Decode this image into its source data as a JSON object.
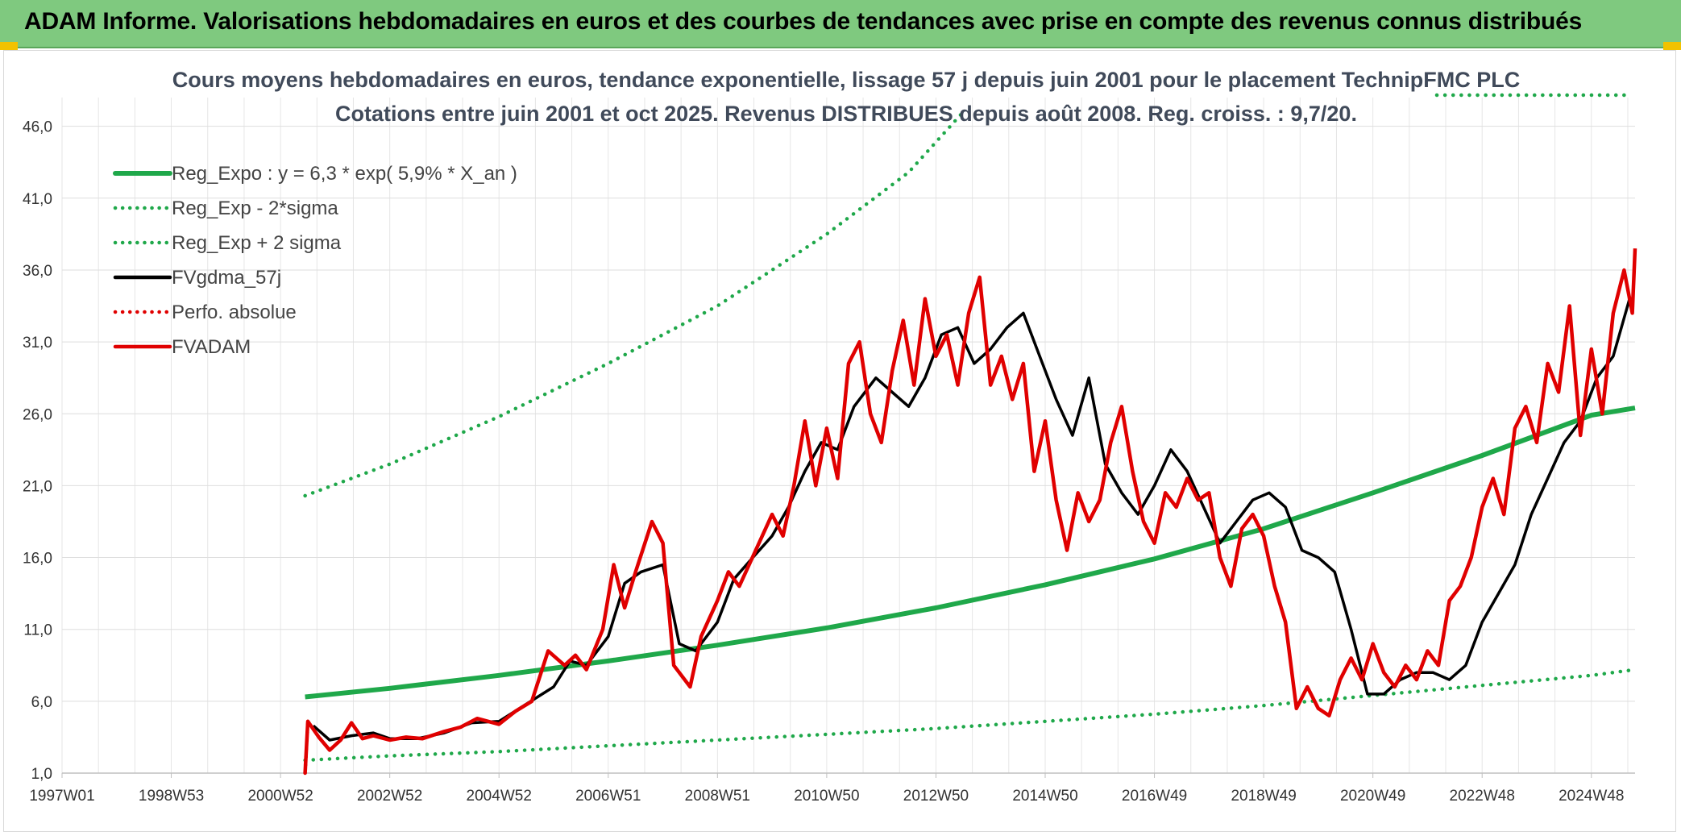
{
  "banner": {
    "title": "ADAM Informe. Valorisations hebdomadaires en euros et des courbes de tendances avec prise en compte des revenus connus distribués"
  },
  "chart_data": {
    "type": "line",
    "title": "Cours moyens hebdomadaires en euros, tendance exponentielle, lissage 57 j depuis juin 2001 pour le placement TechnipFMC PLC",
    "subtitle": "Cotations entre juin 2001 et oct 2025. Revenus DISTRIBUES depuis août 2008. Reg. croiss. : 9,7/20.",
    "xlabel": "",
    "ylabel": "",
    "ylim": [
      1.0,
      48.0
    ],
    "xlim": [
      1997.0,
      2025.8
    ],
    "grid": true,
    "legend_position": "top-left",
    "y_ticks": [
      "1,0",
      "6,0",
      "11,0",
      "16,0",
      "21,0",
      "26,0",
      "31,0",
      "36,0",
      "41,0",
      "46,0"
    ],
    "y_tick_values": [
      1,
      6,
      11,
      16,
      21,
      26,
      31,
      36,
      41,
      46
    ],
    "x_ticks": [
      "1997W01",
      "1998W53",
      "2000W52",
      "2002W52",
      "2004W52",
      "2006W51",
      "2008W51",
      "2010W50",
      "2012W50",
      "2014W50",
      "2016W49",
      "2018W49",
      "2020W49",
      "2022W48",
      "2024W48"
    ],
    "x_tick_values": [
      1997.0,
      1999.0,
      2001.0,
      2003.0,
      2005.0,
      2007.0,
      2009.0,
      2011.0,
      2013.0,
      2015.0,
      2017.0,
      2019.0,
      2021.0,
      2023.0,
      2025.0
    ],
    "series": [
      {
        "name": "Reg_Expo : y = 6,3 * exp( 5,9% *  X_an )",
        "color": "#1fa84a",
        "style": "solid",
        "x": [
          2001.45,
          2003.0,
          2005.0,
          2007.0,
          2009.0,
          2011.0,
          2013.0,
          2015.0,
          2017.0,
          2019.0,
          2021.0,
          2023.0,
          2025.0,
          2025.8
        ],
        "values": [
          6.3,
          6.9,
          7.8,
          8.8,
          9.9,
          11.1,
          12.5,
          14.1,
          15.9,
          18.0,
          20.5,
          23.1,
          25.9,
          26.4
        ]
      },
      {
        "name": "Reg_Exp - 2*sigma",
        "color": "#1fa84a",
        "style": "dotted",
        "x": [
          2001.45,
          2003.0,
          2005.0,
          2007.0,
          2009.0,
          2011.0,
          2013.0,
          2015.0,
          2017.0,
          2019.0,
          2021.0,
          2023.0,
          2025.0,
          2025.8
        ],
        "values": [
          1.9,
          2.2,
          2.5,
          2.9,
          3.3,
          3.7,
          4.1,
          4.6,
          5.1,
          5.7,
          6.4,
          7.1,
          7.8,
          8.2
        ]
      },
      {
        "name": "Reg_Exp + 2 sigma",
        "color": "#1fa84a",
        "style": "dotted",
        "x": [
          2001.45,
          2003.0,
          2005.0,
          2007.0,
          2009.0,
          2011.0,
          2012.5,
          2013.5
        ],
        "values": [
          20.3,
          22.5,
          25.8,
          29.5,
          33.5,
          38.5,
          42.8,
          47.0
        ]
      },
      {
        "name": "FVgdma_57j",
        "color": "#000000",
        "style": "solid",
        "x": [
          2001.6,
          2001.9,
          2002.3,
          2002.7,
          2003.0,
          2003.5,
          2004.0,
          2004.5,
          2005.0,
          2005.5,
          2006.0,
          2006.3,
          2006.6,
          2007.0,
          2007.3,
          2007.6,
          2008.0,
          2008.3,
          2008.6,
          2009.0,
          2009.3,
          2009.6,
          2010.0,
          2010.3,
          2010.6,
          2010.9,
          2011.2,
          2011.5,
          2011.9,
          2012.2,
          2012.5,
          2012.8,
          2013.1,
          2013.4,
          2013.7,
          2014.0,
          2014.3,
          2014.6,
          2014.9,
          2015.2,
          2015.5,
          2015.8,
          2016.1,
          2016.4,
          2016.7,
          2017.0,
          2017.3,
          2017.6,
          2017.9,
          2018.2,
          2018.5,
          2018.8,
          2019.1,
          2019.4,
          2019.7,
          2020.0,
          2020.3,
          2020.6,
          2020.9,
          2021.2,
          2021.5,
          2021.8,
          2022.1,
          2022.4,
          2022.7,
          2023.0,
          2023.3,
          2023.6,
          2023.9,
          2024.2,
          2024.5,
          2024.8,
          2025.1,
          2025.4,
          2025.7
        ],
        "values": [
          4.3,
          3.3,
          3.6,
          3.8,
          3.4,
          3.4,
          3.8,
          4.5,
          4.6,
          5.8,
          7.0,
          8.8,
          8.5,
          10.5,
          14.2,
          15.0,
          15.5,
          10.0,
          9.5,
          11.5,
          14.5,
          15.8,
          17.5,
          19.5,
          22.0,
          24.0,
          23.5,
          26.5,
          28.5,
          27.5,
          26.5,
          28.5,
          31.5,
          32.0,
          29.5,
          30.5,
          32.0,
          33.0,
          30.0,
          27.0,
          24.5,
          28.5,
          22.5,
          20.5,
          19.0,
          21.0,
          23.5,
          22.0,
          19.5,
          17.0,
          18.5,
          20.0,
          20.5,
          19.5,
          16.5,
          16.0,
          15.0,
          11.0,
          6.5,
          6.5,
          7.5,
          8.0,
          8.0,
          7.5,
          8.5,
          11.5,
          13.5,
          15.5,
          19.0,
          21.5,
          24.0,
          25.5,
          28.5,
          30.0,
          34.0
        ]
      },
      {
        "name": "Perfo. absolue",
        "color": "#e00000",
        "style": "dotted",
        "x": [
          2001.45,
          2001.5
        ],
        "values": [
          1.0,
          4.5
        ]
      },
      {
        "name": "FVADAM",
        "color": "#e00000",
        "style": "solid",
        "x": [
          2001.45,
          2001.5,
          2001.7,
          2001.9,
          2002.1,
          2002.3,
          2002.5,
          2002.7,
          2003.0,
          2003.3,
          2003.6,
          2004.0,
          2004.3,
          2004.6,
          2005.0,
          2005.3,
          2005.6,
          2005.9,
          2006.2,
          2006.4,
          2006.6,
          2006.9,
          2007.1,
          2007.3,
          2007.5,
          2007.8,
          2008.0,
          2008.2,
          2008.5,
          2008.7,
          2009.0,
          2009.2,
          2009.4,
          2009.7,
          2010.0,
          2010.2,
          2010.4,
          2010.6,
          2010.8,
          2011.0,
          2011.2,
          2011.4,
          2011.6,
          2011.8,
          2012.0,
          2012.2,
          2012.4,
          2012.6,
          2012.8,
          2013.0,
          2013.2,
          2013.4,
          2013.6,
          2013.8,
          2014.0,
          2014.2,
          2014.4,
          2014.6,
          2014.8,
          2015.0,
          2015.2,
          2015.4,
          2015.6,
          2015.8,
          2016.0,
          2016.2,
          2016.4,
          2016.6,
          2016.8,
          2017.0,
          2017.2,
          2017.4,
          2017.6,
          2017.8,
          2018.0,
          2018.2,
          2018.4,
          2018.6,
          2018.8,
          2019.0,
          2019.2,
          2019.4,
          2019.6,
          2019.8,
          2020.0,
          2020.2,
          2020.4,
          2020.6,
          2020.8,
          2021.0,
          2021.2,
          2021.4,
          2021.6,
          2021.8,
          2022.0,
          2022.2,
          2022.4,
          2022.6,
          2022.8,
          2023.0,
          2023.2,
          2023.4,
          2023.6,
          2023.8,
          2024.0,
          2024.2,
          2024.4,
          2024.6,
          2024.8,
          2025.0,
          2025.2,
          2025.4,
          2025.6,
          2025.75,
          2025.8
        ],
        "values": [
          1.0,
          4.6,
          3.5,
          2.6,
          3.3,
          4.5,
          3.4,
          3.6,
          3.3,
          3.5,
          3.4,
          3.9,
          4.2,
          4.8,
          4.4,
          5.3,
          6.0,
          9.5,
          8.5,
          9.2,
          8.2,
          11.0,
          15.5,
          12.5,
          15.0,
          18.5,
          17.0,
          8.5,
          7.0,
          10.5,
          13.0,
          15.0,
          14.0,
          16.5,
          19.0,
          17.5,
          21.0,
          25.5,
          21.0,
          25.0,
          21.5,
          29.5,
          31.0,
          26.0,
          24.0,
          29.0,
          32.5,
          28.0,
          34.0,
          30.0,
          31.5,
          28.0,
          33.0,
          35.5,
          28.0,
          30.0,
          27.0,
          29.5,
          22.0,
          25.5,
          20.0,
          16.5,
          20.5,
          18.5,
          20.0,
          24.0,
          26.5,
          22.0,
          18.5,
          17.0,
          20.5,
          19.5,
          21.5,
          20.0,
          20.5,
          16.0,
          14.0,
          18.0,
          19.0,
          17.5,
          14.0,
          11.5,
          5.5,
          7.0,
          5.5,
          5.0,
          7.5,
          9.0,
          7.5,
          10.0,
          8.0,
          7.0,
          8.5,
          7.5,
          9.5,
          8.5,
          13.0,
          14.0,
          16.0,
          19.5,
          21.5,
          19.0,
          25.0,
          26.5,
          24.0,
          29.5,
          27.5,
          33.5,
          24.5,
          30.5,
          26.0,
          33.0,
          36.0,
          33.0,
          37.5
        ]
      }
    ]
  }
}
